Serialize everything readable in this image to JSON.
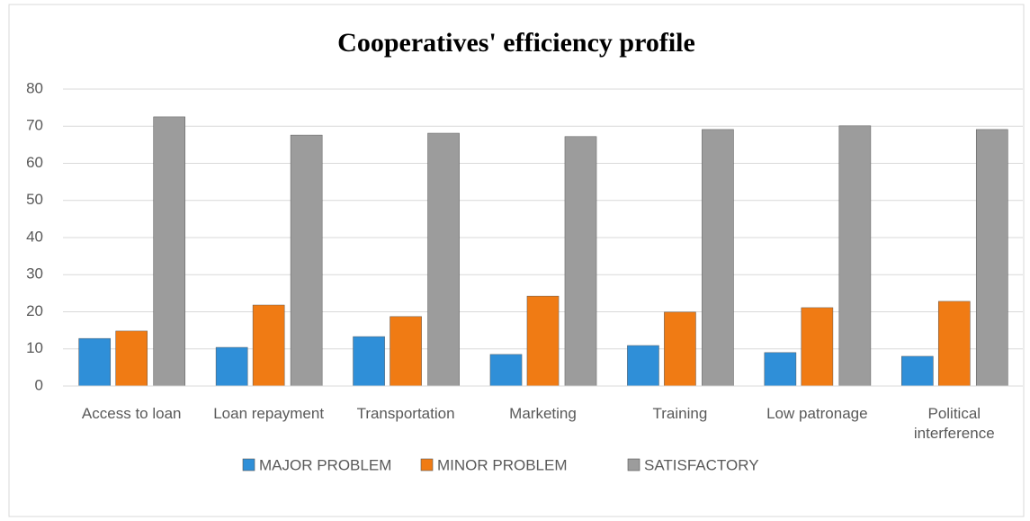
{
  "chart_data": {
    "type": "bar",
    "title": "Cooperatives' efficiency profile",
    "categories": [
      "Access to loan",
      "Loan repayment",
      "Transportation",
      "Marketing",
      "Training",
      "Low patronage",
      "Political interference"
    ],
    "series": [
      {
        "name": "MAJOR PROBLEM",
        "color": "#2f8fd8",
        "values": [
          12.8,
          10.4,
          13.3,
          8.5,
          10.9,
          9.0,
          8.0
        ]
      },
      {
        "name": "MINOR PROBLEM",
        "color": "#f07b14",
        "values": [
          14.8,
          21.8,
          18.7,
          24.2,
          19.9,
          21.1,
          22.8
        ]
      },
      {
        "name": "SATISFACTORY",
        "color": "#9c9c9c",
        "values": [
          72.5,
          67.6,
          68.1,
          67.2,
          69.1,
          70.1,
          69.1
        ]
      }
    ],
    "ylim": [
      0,
      80
    ],
    "yticks": [
      0,
      10,
      20,
      30,
      40,
      50,
      60,
      70,
      80
    ],
    "grid": true,
    "legend": "bottom"
  }
}
